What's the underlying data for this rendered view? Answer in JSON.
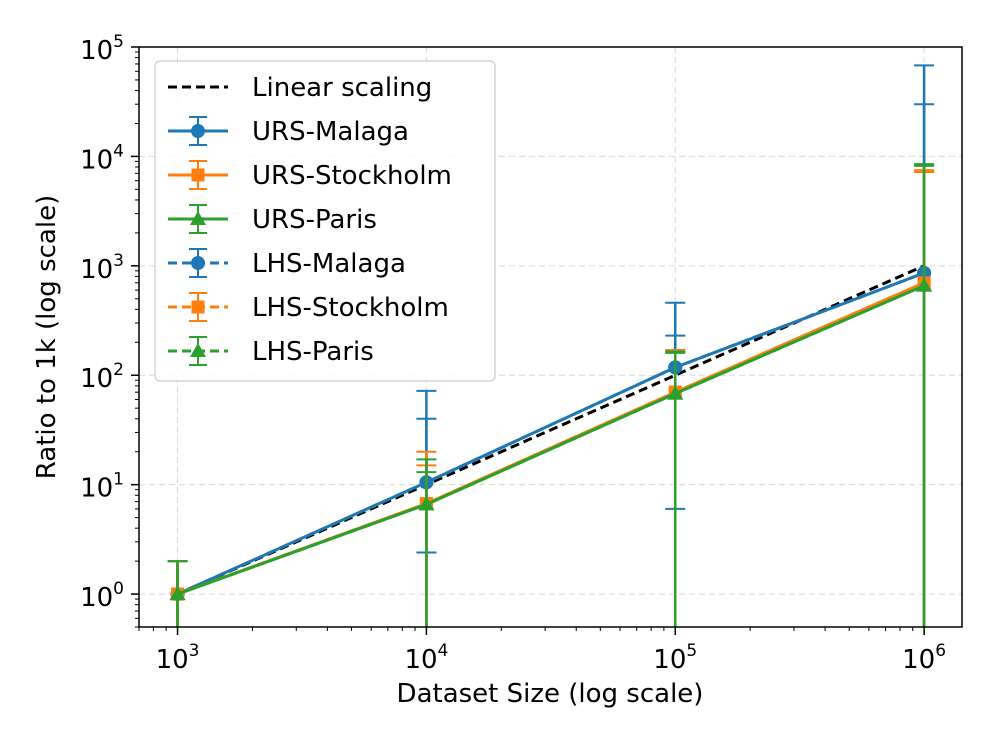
{
  "chart_data": {
    "type": "line",
    "xlabel": "Dataset Size (log scale)",
    "ylabel": "Ratio to 1k (log scale)",
    "x_scale": "log",
    "y_scale": "log",
    "xlim": [
      700,
      1420000
    ],
    "ylim": [
      0.5,
      100000
    ],
    "grid": true,
    "legend_position": "top-left",
    "x_ticks": [
      {
        "base": "10",
        "exp": "3",
        "value": 1000
      },
      {
        "base": "10",
        "exp": "4",
        "value": 10000
      },
      {
        "base": "10",
        "exp": "5",
        "value": 100000
      },
      {
        "base": "10",
        "exp": "6",
        "value": 1000000
      }
    ],
    "y_ticks": [
      {
        "base": "10",
        "exp": "0",
        "value": 1
      },
      {
        "base": "10",
        "exp": "1",
        "value": 10
      },
      {
        "base": "10",
        "exp": "2",
        "value": 100
      },
      {
        "base": "10",
        "exp": "3",
        "value": 1000
      },
      {
        "base": "10",
        "exp": "4",
        "value": 10000
      },
      {
        "base": "10",
        "exp": "5",
        "value": 100000
      }
    ],
    "x": [
      1000,
      10000,
      100000,
      1000000
    ],
    "series": [
      {
        "name": "Linear scaling",
        "color": "#000000",
        "dash": true,
        "marker": "none",
        "values": [
          1,
          10,
          100,
          1000
        ],
        "err_low": null,
        "err_high": null
      },
      {
        "name": "URS-Malaga",
        "color": "#1f77b4",
        "dash": false,
        "marker": "circle",
        "values": [
          1,
          10.5,
          118,
          860
        ],
        "err_low": [
          0.5,
          0.5,
          6,
          0.5
        ],
        "err_high": [
          2,
          72,
          460,
          68000
        ]
      },
      {
        "name": "URS-Stockholm",
        "color": "#ff7f0e",
        "dash": false,
        "marker": "square",
        "values": [
          1,
          6.7,
          70,
          700
        ],
        "err_low": [
          0.5,
          0.5,
          0.5,
          0.5
        ],
        "err_high": [
          2,
          20,
          170,
          7500
        ]
      },
      {
        "name": "URS-Paris",
        "color": "#2ca02c",
        "dash": false,
        "marker": "triangle",
        "values": [
          1,
          6.6,
          68,
          660
        ],
        "err_low": [
          0.5,
          0.5,
          0.5,
          0.5
        ],
        "err_high": [
          2,
          17,
          165,
          8500
        ]
      },
      {
        "name": "LHS-Malaga",
        "color": "#1f77b4",
        "dash": true,
        "marker": "circle",
        "values": [
          1,
          10.5,
          118,
          860
        ],
        "err_low": [
          0.5,
          2.4,
          0.5,
          0.5
        ],
        "err_high": [
          2,
          40,
          230,
          30000
        ]
      },
      {
        "name": "LHS-Stockholm",
        "color": "#ff7f0e",
        "dash": true,
        "marker": "square",
        "values": [
          1,
          6.7,
          70,
          700
        ],
        "err_low": [
          0.5,
          0.5,
          0.5,
          0.5
        ],
        "err_high": [
          2,
          15,
          165,
          7200
        ]
      },
      {
        "name": "LHS-Paris",
        "color": "#2ca02c",
        "dash": true,
        "marker": "triangle",
        "values": [
          1,
          6.6,
          68,
          660
        ],
        "err_low": [
          0.5,
          0.5,
          0.5,
          0.5
        ],
        "err_high": [
          2,
          13,
          160,
          8200
        ]
      }
    ]
  }
}
